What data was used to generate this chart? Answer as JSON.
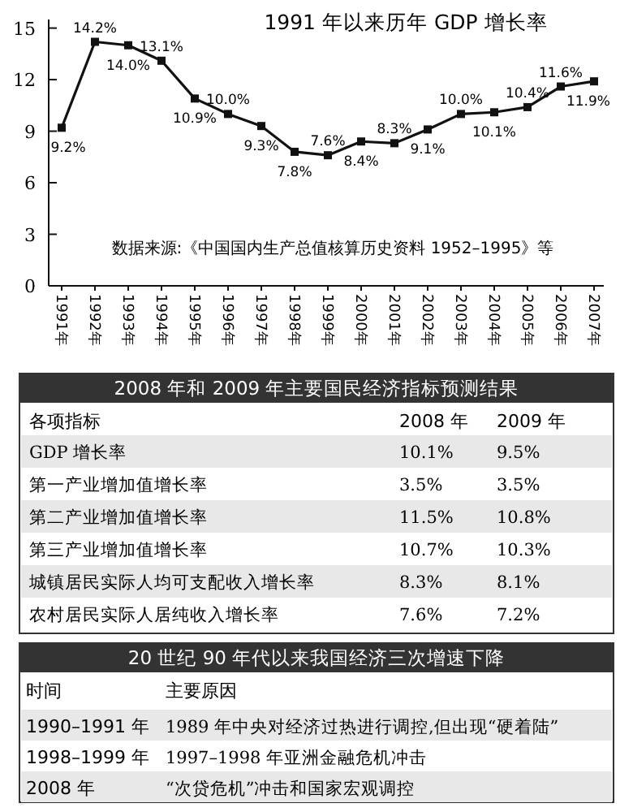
{
  "chart_data": [
    {
      "type": "line",
      "title": "1991 年以来历年 GDP 增长率",
      "categories": [
        "1991年",
        "1992年",
        "1993年",
        "1994年",
        "1995年",
        "1996年",
        "1997年",
        "1998年",
        "1999年",
        "2000年",
        "2001年",
        "2002年",
        "2003年",
        "2004年",
        "2005年",
        "2006年",
        "2007年"
      ],
      "series": [
        {
          "color": "#111111",
          "values": [
            9.2,
            14.2,
            14.0,
            13.1,
            10.9,
            10.0,
            9.3,
            7.8,
            7.6,
            8.4,
            8.3,
            9.1,
            10.0,
            10.1,
            10.4,
            11.6,
            11.9
          ],
          "value_labels": [
            "9.2%",
            "14.2%",
            "14.0%",
            "13.1%",
            "10.9%",
            "10.0%",
            "9.3%",
            "7.8%",
            "7.6%",
            "8.4%",
            "8.3%",
            "9.1%",
            "10.0%",
            "10.1%",
            "10.4%",
            "11.6%",
            "11.9%"
          ]
        }
      ],
      "ylim": [
        0,
        15.5
      ],
      "yticks": [
        0,
        3,
        6,
        9,
        12,
        15
      ],
      "marker": "square",
      "line_style": "solid",
      "annotations": [
        "数据来源:《中国国内生产总值核算历史资料 1952–1995》等"
      ]
    },
    {
      "type": "other",
      "title": "2008 年和 2009 年主要国民经济指标预测结果",
      "xlabel": "各项指标",
      "categories": [
        "GDP 增长率",
        "第一产业增加值增长率",
        "第二产业增加值增长率",
        "第三产业增加值增长率",
        "城镇居民实际人均可支配收入增长率",
        "农村居民实际人居纯收入增长率"
      ],
      "series": [
        {
          "name": "2008 年",
          "colors": [
            "#e8e8e8",
            "#ffffff",
            "#e8e8e8",
            "#ffffff",
            "#e8e8e8",
            "#ffffff"
          ],
          "values": [
            10.1,
            3.5,
            11.5,
            10.7,
            8.3,
            7.6
          ],
          "value_labels": [
            "10.1%",
            "3.5%",
            "11.5%",
            "10.7%",
            "8.3%",
            "7.6%"
          ]
        },
        {
          "name": "2009 年",
          "colors": [
            "#e8e8e8",
            "#ffffff",
            "#e8e8e8",
            "#ffffff",
            "#e8e8e8",
            "#ffffff"
          ],
          "values": [
            9.5,
            3.5,
            10.8,
            10.3,
            8.1,
            7.2
          ],
          "value_labels": [
            "9.5%",
            "3.5%",
            "10.8%",
            "10.3%",
            "8.1%",
            "7.2%"
          ]
        }
      ]
    },
    {
      "type": "other",
      "title": "20 世纪 90 年代以来我国经济三次增速下降",
      "xlabel": "时间",
      "ylabel": "主要原因",
      "categories": [
        "1990–1991 年",
        "1998–1999 年",
        "2008 年"
      ],
      "annotations": [
        "1989 年中央对经济过热进行调控,但出现“硬着陆”",
        "1997–1998 年亚洲金融危机冲击",
        "“次贷危机”冲击和国家宏观调控"
      ]
    }
  ]
}
